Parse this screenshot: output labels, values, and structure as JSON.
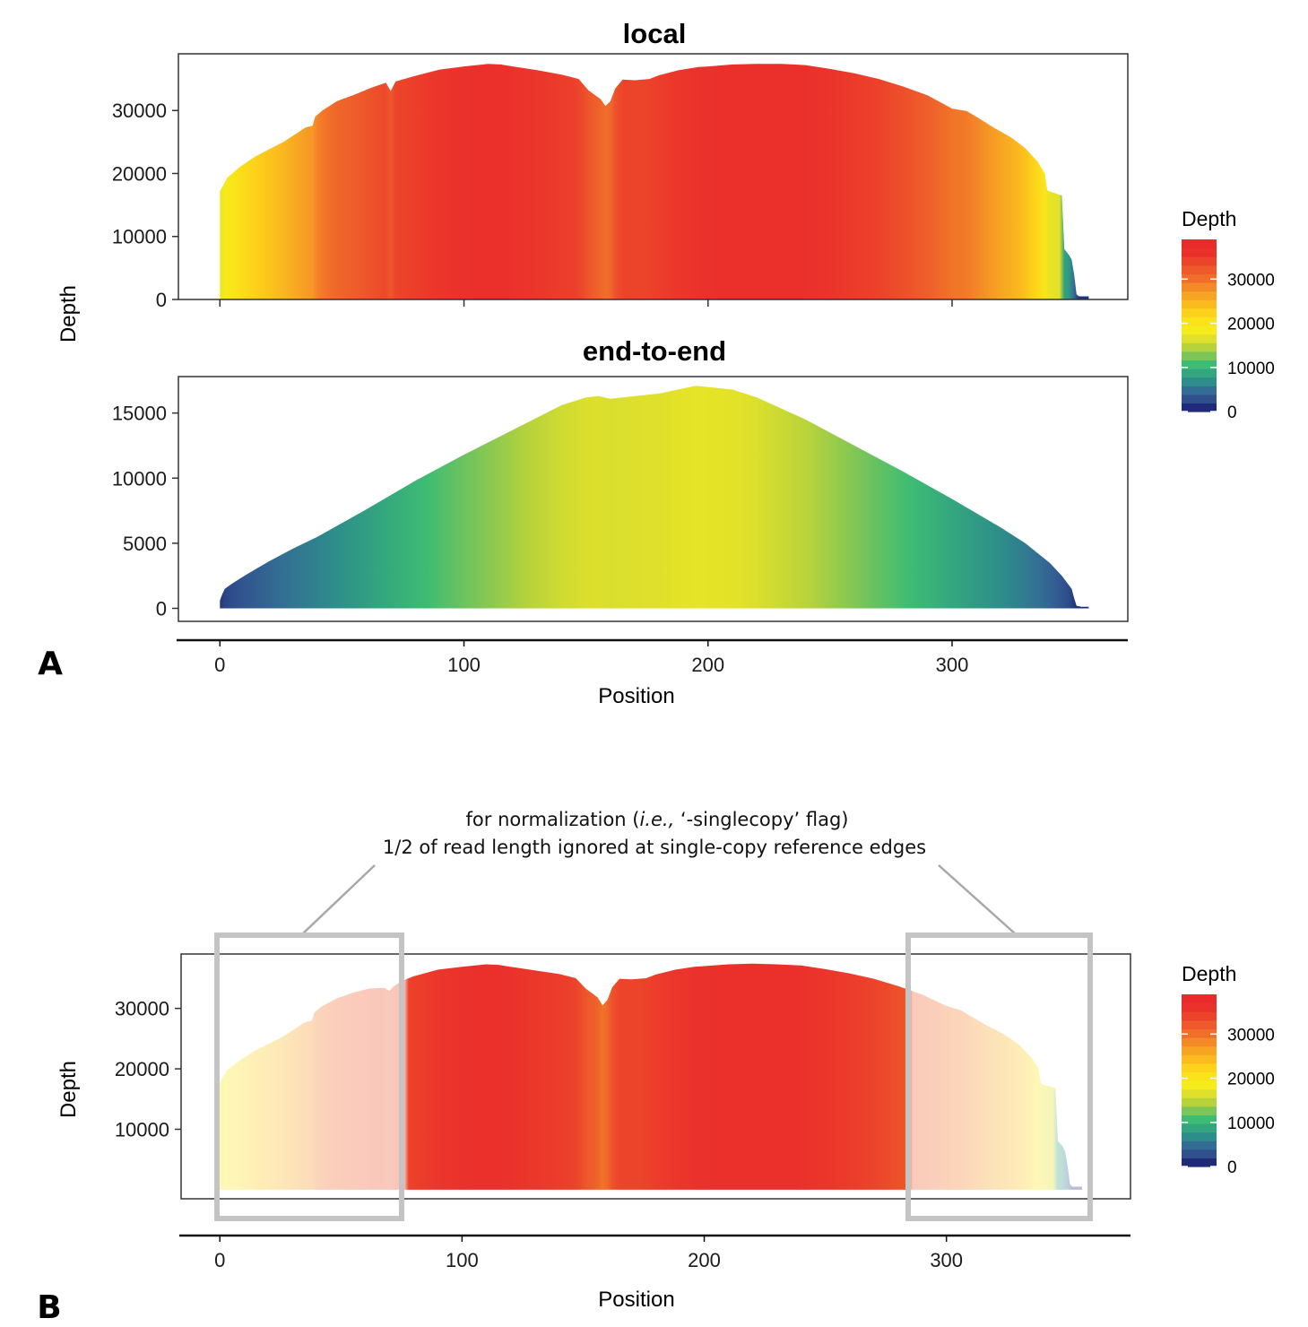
{
  "panels": {
    "A": {
      "label": "A"
    },
    "B": {
      "label": "B"
    }
  },
  "chart_data": [
    {
      "type": "area",
      "panel": "A",
      "title": "local",
      "ylabel": "Depth",
      "xlabel": "",
      "ylim": [
        0,
        39000
      ],
      "yticks": [
        0,
        10000,
        20000,
        30000
      ],
      "xlim": [
        -17,
        372
      ],
      "fill": "depth gradient",
      "series": [
        {
          "x": [
            0,
            3,
            8,
            14,
            20,
            26,
            32,
            35,
            38,
            39,
            42,
            48,
            55,
            62,
            68,
            70,
            72,
            80,
            90,
            100,
            110,
            115,
            120,
            130,
            140,
            147,
            151,
            156,
            158,
            160,
            162,
            165,
            170,
            176,
            180,
            188,
            196,
            200,
            210,
            220,
            230,
            240,
            250,
            260,
            270,
            280,
            290,
            300,
            306,
            310,
            317,
            322,
            325,
            330,
            335,
            338,
            339,
            345,
            346,
            347,
            348,
            349,
            350,
            351,
            352,
            356
          ],
          "y": [
            17200,
            19300,
            21000,
            22600,
            23800,
            25000,
            26500,
            27300,
            27600,
            29000,
            30000,
            31500,
            32500,
            33600,
            34400,
            33100,
            34600,
            35500,
            36500,
            37000,
            37400,
            37300,
            37000,
            36400,
            35700,
            35000,
            33200,
            31800,
            30700,
            31500,
            33500,
            34900,
            34800,
            35000,
            35600,
            36400,
            36900,
            37000,
            37300,
            37400,
            37400,
            37200,
            36600,
            35900,
            35000,
            33800,
            32400,
            30300,
            29900,
            29000,
            27300,
            26200,
            25500,
            24000,
            21900,
            20000,
            17300,
            16500,
            8000,
            7500,
            7000,
            6300,
            4000,
            800,
            500,
            500
          ]
        }
      ]
    },
    {
      "type": "area",
      "panel": "A",
      "title": "end-to-end",
      "ylabel": "",
      "xlabel": "Position",
      "ylim": [
        -1000,
        17800
      ],
      "yticks": [
        0,
        5000,
        10000,
        15000
      ],
      "xticks": [
        0,
        100,
        200,
        300
      ],
      "xlim": [
        -17,
        372
      ],
      "fill": "depth gradient",
      "series": [
        {
          "x": [
            0,
            1,
            2,
            5,
            10,
            20,
            30,
            40,
            60,
            80,
            100,
            120,
            140,
            150,
            155,
            160,
            170,
            180,
            190,
            195,
            200,
            210,
            220,
            240,
            260,
            280,
            300,
            320,
            330,
            340,
            345,
            349,
            350,
            351,
            353,
            356
          ],
          "y": [
            600,
            1100,
            1500,
            1900,
            2500,
            3600,
            4600,
            5500,
            7600,
            9800,
            11800,
            13700,
            15600,
            16200,
            16300,
            16100,
            16300,
            16500,
            16900,
            17100,
            17000,
            16800,
            16200,
            14500,
            12500,
            10500,
            8400,
            6200,
            5000,
            3500,
            2500,
            1500,
            800,
            200,
            120,
            120
          ]
        }
      ]
    },
    {
      "type": "area",
      "panel": "B",
      "title": "",
      "ylabel": "Depth",
      "xlabel": "Position",
      "ylim": [
        -1500,
        39000
      ],
      "yticks": [
        10000,
        20000,
        30000
      ],
      "xticks": [
        0,
        100,
        200,
        300
      ],
      "xlim": [
        -16,
        376
      ],
      "fill": "depth gradient, faded inside ignored edge regions",
      "ignored_regions": [
        [
          0,
          76
        ],
        [
          286,
          361
        ]
      ],
      "series": [
        {
          "x": [
            0,
            3,
            8,
            14,
            20,
            26,
            32,
            35,
            38,
            39,
            42,
            48,
            55,
            62,
            68,
            70,
            72,
            75,
            80,
            90,
            100,
            110,
            115,
            120,
            130,
            140,
            147,
            151,
            156,
            158,
            160,
            162,
            165,
            170,
            176,
            180,
            188,
            196,
            200,
            210,
            220,
            230,
            240,
            250,
            260,
            270,
            280,
            290,
            300,
            306,
            310,
            317,
            322,
            325,
            330,
            335,
            338,
            339,
            345,
            346,
            347,
            348,
            349,
            350,
            351,
            352,
            356
          ],
          "y": [
            17800,
            19800,
            21300,
            22900,
            24100,
            25300,
            26900,
            27700,
            28000,
            29300,
            30300,
            31600,
            32600,
            33300,
            33400,
            32900,
            33700,
            34500,
            35300,
            36400,
            36900,
            37300,
            37200,
            36900,
            36300,
            35700,
            35000,
            33300,
            31800,
            30500,
            31400,
            33500,
            34900,
            34800,
            35000,
            35600,
            36400,
            36900,
            37000,
            37300,
            37400,
            37300,
            37100,
            36500,
            35800,
            34900,
            33700,
            32300,
            30400,
            29700,
            28700,
            27100,
            26100,
            25400,
            24000,
            21900,
            20200,
            17500,
            16800,
            8000,
            7600,
            7200,
            6300,
            4000,
            900,
            500,
            500
          ]
        }
      ]
    }
  ],
  "legend": {
    "title": "Depth",
    "labels": [
      "30000",
      "20000",
      "10000",
      "0"
    ],
    "values": [
      30000,
      20000,
      10000,
      0
    ],
    "max": 39000,
    "colors": [
      "#1f2a78",
      "#2f4f8d",
      "#346d94",
      "#2d8d8a",
      "#33a57f",
      "#3ebc73",
      "#7cc558",
      "#b7d33c",
      "#dfe02b",
      "#f6ec1b",
      "#fae31a",
      "#fcd31a",
      "#fbbb1e",
      "#f7a423",
      "#f48a27",
      "#f06e29",
      "#ee5a2b",
      "#ec432b",
      "#eb312b",
      "#ea2b2b"
    ]
  },
  "annotation": {
    "line1_prefix": "for normalization (",
    "line1_italic": "i.e.,",
    "line1_suffix": " ‘-singlecopy’ flag)",
    "line2": "1/2 of read length ignored at single-copy reference edges"
  }
}
